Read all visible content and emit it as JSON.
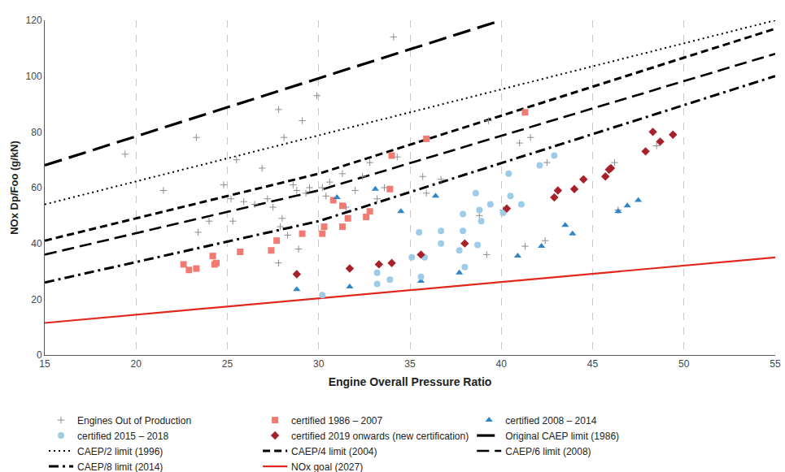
{
  "chart_data": {
    "type": "scatter",
    "x_label": "Engine Overall Pressure Ratio",
    "y_label": "NOx Dp/Foo (g/kN)",
    "xlim": [
      15,
      55
    ],
    "xticks": [
      15,
      20,
      25,
      30,
      35,
      40,
      45,
      50,
      55
    ],
    "ylim": [
      0,
      120
    ],
    "yticks": [
      0,
      20,
      40,
      60,
      80,
      100,
      120
    ],
    "grid": true,
    "legend": "bottom",
    "series": [
      {
        "name": "Engines Out of Production",
        "type": "scatter",
        "marker": "cross",
        "color": "#8c8c8c",
        "x": [
          19.4,
          21.5,
          23.3,
          23.4,
          24.0,
          24.8,
          25.2,
          25.3,
          25.5,
          25.9,
          26.5,
          26.9,
          27.2,
          27.5,
          27.8,
          27.8,
          27.9,
          28.0,
          28.1,
          28.3,
          28.6,
          28.8,
          28.9,
          29.1,
          29.3,
          29.5,
          29.9,
          30.2,
          30.4,
          30.6,
          31.3,
          31.5,
          32.0,
          32.4,
          32.8,
          33.2,
          33.6,
          34.1,
          34.3,
          35.7,
          35.9,
          36.7,
          38.8,
          39.2,
          39.3,
          40.1,
          41.0,
          41.3,
          41.6,
          42.4,
          42.5,
          46.2,
          46.4,
          48.5
        ],
        "values": [
          72,
          59,
          78,
          44,
          48,
          61,
          56,
          48,
          70,
          55,
          54,
          67,
          56,
          53,
          88,
          33,
          46,
          49,
          78,
          43,
          61,
          59,
          38,
          84,
          58,
          60,
          93,
          60,
          57,
          62,
          65,
          53,
          59,
          64,
          69,
          56,
          60,
          114,
          71,
          64,
          58,
          63,
          50,
          36,
          84,
          52,
          76,
          39,
          78,
          41,
          69,
          69,
          52,
          75
        ]
      },
      {
        "name": "certified 1986 – 2007",
        "type": "scatter",
        "marker": "square",
        "color": "#f07b73",
        "x": [
          22.6,
          22.9,
          23.3,
          24.2,
          24.3,
          24.4,
          25.7,
          27.4,
          27.7,
          29.1,
          30.2,
          30.3,
          30.8,
          31.3,
          31.3,
          31.6,
          32.6,
          32.8,
          33.9,
          34.0,
          35.9,
          41.3
        ],
        "values": [
          32.5,
          30.5,
          31,
          35.5,
          32.5,
          33,
          37,
          37.5,
          41,
          43.5,
          43.5,
          46,
          55.5,
          53.5,
          46,
          49,
          49.5,
          51.5,
          59.5,
          71.5,
          77.5,
          87
        ]
      },
      {
        "name": "certified 2008 – 2014",
        "type": "scatter",
        "marker": "triangle",
        "color": "#2e86c9",
        "x": [
          28.8,
          31.0,
          31.7,
          33.1,
          34.5,
          35.6,
          36.4,
          37.7,
          40.9,
          42.2,
          43.5,
          43.9,
          46.4,
          46.9,
          47.5
        ],
        "values": [
          23.5,
          56.5,
          24.5,
          59.5,
          51.5,
          26.5,
          57,
          29.5,
          35.5,
          39,
          46.5,
          43.5,
          51.5,
          53.5,
          55.5
        ]
      },
      {
        "name": "certified 2015 – 2018",
        "type": "scatter",
        "marker": "circle",
        "color": "#9dcbe8",
        "x": [
          30.2,
          33.2,
          33.2,
          33.9,
          35.1,
          35.5,
          35.6,
          35.8,
          36.7,
          36.7,
          37.7,
          37.9,
          37.9,
          38.0,
          38.6,
          38.7,
          38.8,
          38.9,
          39.4,
          40.1,
          40.4,
          40.5,
          41.1,
          42.1,
          42.9
        ],
        "values": [
          21.5,
          29.5,
          25.5,
          27,
          35,
          44,
          28,
          35,
          44.5,
          40,
          37.5,
          50.5,
          44.5,
          31.5,
          58,
          39.5,
          52,
          48,
          54,
          51,
          65,
          57,
          54,
          68,
          71.5
        ]
      },
      {
        "name": "certified 2019 onwards (new certification)",
        "type": "scatter",
        "marker": "diamond",
        "color": "#a8202a",
        "x": [
          28.8,
          31.7,
          33.3,
          34.0,
          35.6,
          38.0,
          40.3,
          42.9,
          43.1,
          44.0,
          44.5,
          45.7,
          45.9,
          46.0,
          47.9,
          48.3,
          48.7,
          49.4
        ],
        "values": [
          29,
          31,
          32.5,
          33,
          36,
          40,
          52.5,
          56.5,
          59,
          59.5,
          63,
          64,
          66.5,
          67,
          73,
          80,
          76.5,
          79
        ]
      },
      {
        "name": "Original CAEP limit (1986)",
        "type": "line",
        "line_style": "long_dash",
        "color": "#000000",
        "x": [
          15,
          40
        ],
        "values": [
          68,
          120
        ]
      },
      {
        "name": "CAEP/2 limit (1996)",
        "type": "line",
        "line_style": "dotted",
        "color": "#000000",
        "x": [
          15,
          55
        ],
        "values": [
          54,
          120
        ]
      },
      {
        "name": "CAEP/4 limit (2004)",
        "type": "line",
        "line_style": "dashed",
        "color": "#000000",
        "x": [
          15,
          30,
          55
        ],
        "values": [
          41,
          65,
          117
        ]
      },
      {
        "name": "CAEP/6 limit (2008)",
        "type": "line",
        "line_style": "medium_dash",
        "color": "#000000",
        "x": [
          15,
          30,
          55
        ],
        "values": [
          36,
          59,
          108
        ]
      },
      {
        "name": "CAEP/8 limit (2014)",
        "type": "line",
        "line_style": "dash_dot",
        "color": "#000000",
        "x": [
          15,
          30,
          55
        ],
        "values": [
          26,
          48,
          100
        ]
      },
      {
        "name": "NOx goal (2027)",
        "type": "line",
        "line_style": "solid",
        "color": "#e2261c",
        "x": [
          15,
          55
        ],
        "values": [
          11.5,
          35
        ]
      }
    ]
  }
}
